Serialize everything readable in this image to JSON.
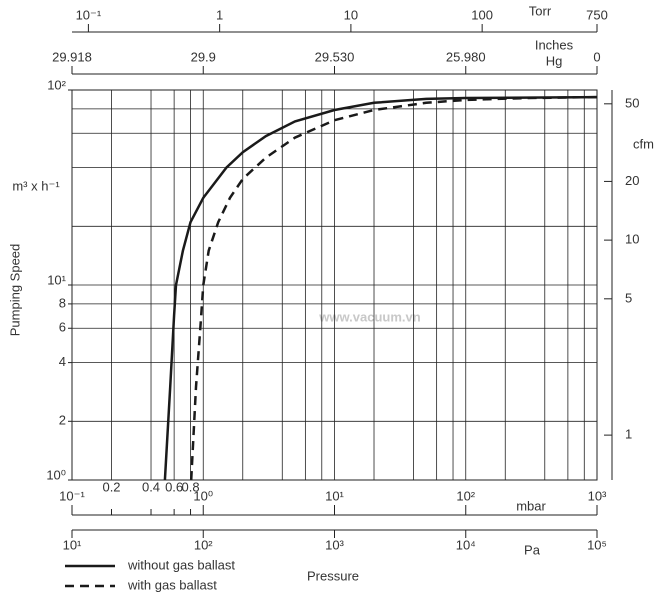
{
  "chart_data": {
    "type": "line",
    "x_label": "Pressure",
    "y_label": "Pumping Speed",
    "y_unit": "m³ x h⁻¹",
    "x_unit": "mbar",
    "watermark": "www.vacuum.vn",
    "log_x": true,
    "log_y": true,
    "xlim": [
      0.1,
      1000
    ],
    "xticks": [
      {
        "value": 0.1,
        "label": "10⁻¹"
      },
      0.2,
      0.4,
      0.6,
      0.8,
      {
        "value": 1,
        "label": "10⁰"
      },
      {
        "value": 10,
        "label": "10¹"
      },
      {
        "value": 100,
        "label": "10²"
      },
      {
        "value": 1000,
        "label": "10³"
      }
    ],
    "xgrid": [
      0.2,
      0.4,
      0.6,
      0.8,
      1,
      2,
      4,
      6,
      8,
      10,
      20,
      40,
      60,
      80,
      100,
      200,
      400,
      600,
      800
    ],
    "ylim": [
      1,
      100
    ],
    "yticks": [
      {
        "value": 1,
        "label": "10⁰"
      },
      2,
      4,
      6,
      8,
      {
        "value": 10,
        "label": "10¹"
      },
      {
        "value": 100,
        "label": "10²"
      }
    ],
    "ygrid": [
      2,
      4,
      6,
      8,
      10,
      20,
      40,
      60,
      80
    ],
    "y2_label": "cfm",
    "y2lim": [
      0.5886,
      58.86
    ],
    "y2ticks": [
      1,
      5,
      10,
      20,
      50
    ],
    "pa_axis": {
      "label": "Pa",
      "xlim": [
        10,
        100000
      ],
      "xticks": [
        {
          "value": 10,
          "label": "10¹"
        },
        {
          "value": 100,
          "label": "10²"
        },
        {
          "value": 1000,
          "label": "10³"
        },
        {
          "value": 10000,
          "label": "10⁴"
        },
        {
          "value": 100000,
          "label": "10⁵"
        }
      ]
    },
    "torr_axis": {
      "label": "Torr",
      "xlim": [
        0.075,
        750
      ],
      "xticks": [
        {
          "value": 0.1,
          "label": "10⁻¹"
        },
        1,
        10,
        100,
        750
      ]
    },
    "inches_hg_axis": {
      "label": [
        "Inches",
        "Hg"
      ],
      "ticks": [
        "29.918",
        "29.9",
        "29.530",
        "25.980",
        "0"
      ]
    },
    "series": [
      {
        "name": "without gas ballast",
        "color": "#1a1a1a",
        "dash": false,
        "x": [
          0.51,
          0.56,
          0.6,
          0.62,
          0.7,
          0.8,
          1.0,
          1.5,
          2,
          3,
          5,
          10,
          20,
          50,
          100,
          1000
        ],
        "values": [
          1,
          3,
          7,
          10,
          15,
          21,
          28,
          40,
          48,
          58,
          69,
          79,
          86,
          90,
          91,
          92
        ]
      },
      {
        "name": "with gas ballast",
        "color": "#1a1a1a",
        "dash": true,
        "x": [
          0.81,
          0.88,
          0.95,
          1.0,
          1.1,
          1.3,
          1.6,
          2,
          3,
          5,
          10,
          20,
          50,
          100,
          300,
          1000
        ],
        "values": [
          1,
          3,
          6,
          10,
          15,
          21,
          28,
          35,
          45,
          57,
          70,
          79,
          86,
          89,
          91,
          92
        ]
      }
    ]
  }
}
